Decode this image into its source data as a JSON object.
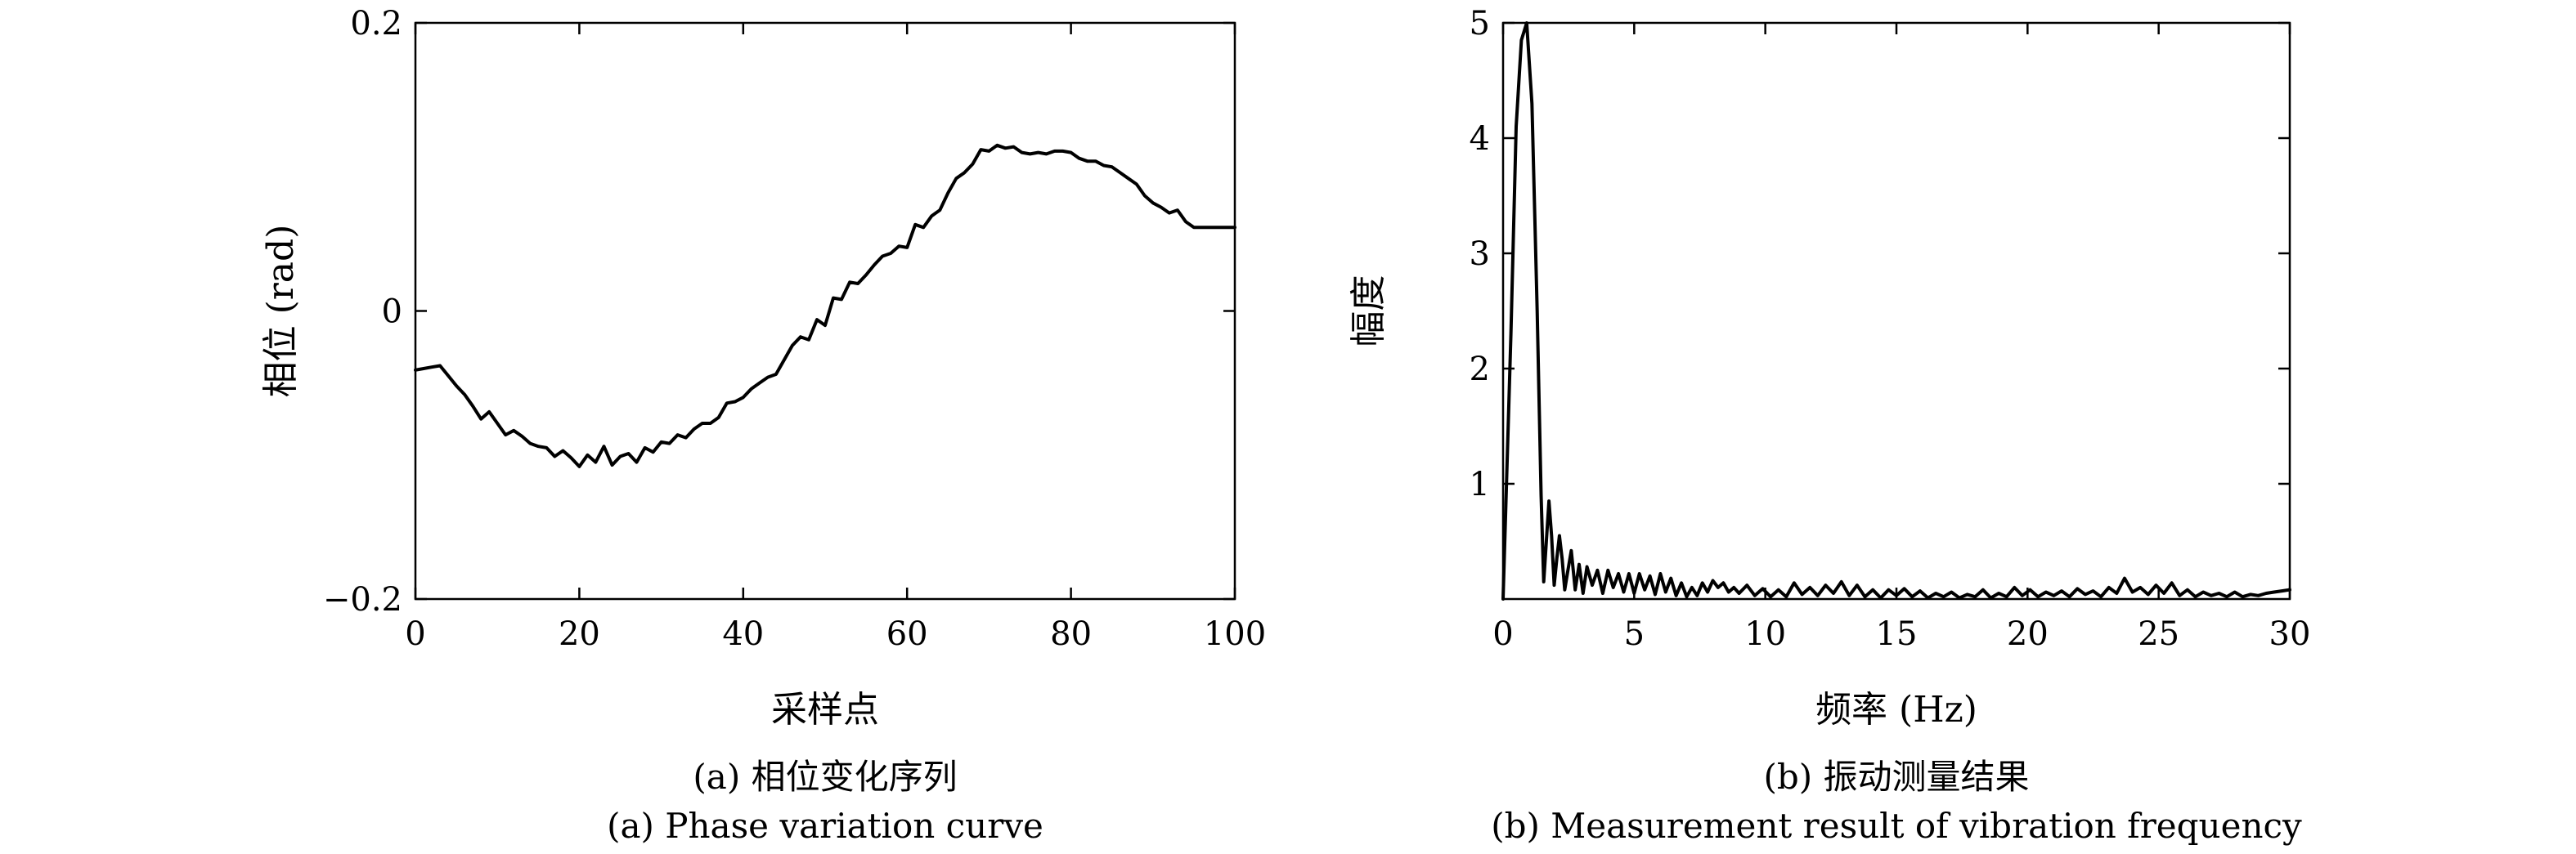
{
  "chart_data": [
    {
      "type": "line",
      "xlabel": "采样点",
      "ylabel": "相位 (rad)",
      "xlim": [
        0,
        100
      ],
      "ylim": [
        -0.2,
        0.2
      ],
      "x_ticks": [
        0,
        20,
        40,
        60,
        80,
        100
      ],
      "x_tick_labels": [
        "0",
        "20",
        "40",
        "60",
        "80",
        "100"
      ],
      "y_ticks": [
        -0.2,
        0,
        0.2
      ],
      "y_tick_labels": [
        "−0.2",
        "0",
        "0.2"
      ],
      "caption": "(a) 相位变化序列",
      "caption_en": "(a) Phase variation curve",
      "grid": false,
      "series": [
        {
          "x": [
            0,
            1,
            2,
            3,
            4,
            5,
            6,
            7,
            8,
            9,
            10,
            11,
            12,
            13,
            14,
            15,
            16,
            17,
            18,
            19,
            20,
            21,
            22,
            23,
            24,
            25,
            26,
            27,
            28,
            29,
            30,
            31,
            32,
            33,
            34,
            35,
            36,
            37,
            38,
            39,
            40,
            41,
            42,
            43,
            44,
            45,
            46,
            47,
            48,
            49,
            50,
            51,
            52,
            53,
            54,
            55,
            56,
            57,
            58,
            59,
            60,
            61,
            62,
            63,
            64,
            65,
            66,
            67,
            68,
            69,
            70,
            71,
            72,
            73,
            74,
            75,
            76,
            77,
            78,
            79,
            80,
            81,
            82,
            83,
            84,
            85,
            86,
            87,
            88,
            89,
            90,
            91,
            92,
            93,
            94,
            95,
            96,
            97,
            98,
            99,
            100
          ],
          "y": [
            -0.041,
            -0.04,
            -0.039,
            -0.038,
            -0.045,
            -0.052,
            -0.058,
            -0.066,
            -0.075,
            -0.07,
            -0.078,
            -0.086,
            -0.083,
            -0.087,
            -0.092,
            -0.094,
            -0.095,
            -0.101,
            -0.097,
            -0.102,
            -0.108,
            -0.1,
            -0.105,
            -0.094,
            -0.107,
            -0.101,
            -0.099,
            -0.105,
            -0.095,
            -0.098,
            -0.091,
            -0.092,
            -0.086,
            -0.088,
            -0.082,
            -0.078,
            -0.078,
            -0.074,
            -0.064,
            -0.063,
            -0.06,
            -0.054,
            -0.05,
            -0.046,
            -0.044,
            -0.034,
            -0.024,
            -0.018,
            -0.02,
            -0.006,
            -0.01,
            0.009,
            0.008,
            0.02,
            0.019,
            0.025,
            0.032,
            0.038,
            0.04,
            0.045,
            0.044,
            0.06,
            0.058,
            0.066,
            0.07,
            0.082,
            0.092,
            0.096,
            0.102,
            0.112,
            0.111,
            0.115,
            0.113,
            0.114,
            0.11,
            0.109,
            0.11,
            0.109,
            0.111,
            0.111,
            0.11,
            0.106,
            0.104,
            0.104,
            0.101,
            0.1,
            0.096,
            0.092,
            0.088,
            0.08,
            0.075,
            0.072,
            0.068,
            0.07,
            0.062,
            0.058,
            0.058,
            0.058,
            0.058,
            0.058,
            0.058
          ]
        }
      ]
    },
    {
      "type": "line",
      "xlabel": "频率 (Hz)",
      "ylabel": "幅度",
      "xlim": [
        0,
        30
      ],
      "ylim": [
        0,
        5
      ],
      "x_ticks": [
        0,
        5,
        10,
        15,
        20,
        25,
        30
      ],
      "x_tick_labels": [
        "0",
        "5",
        "10",
        "15",
        "20",
        "25",
        "30"
      ],
      "y_ticks": [
        1,
        2,
        3,
        4,
        5
      ],
      "y_tick_labels": [
        "1",
        "2",
        "3",
        "4",
        "5"
      ],
      "caption": "(b) 振动测量结果",
      "caption_en": "(b) Measurement result of vibration frequency",
      "grid": false,
      "series": [
        {
          "x": [
            0.0,
            0.3,
            0.5,
            0.7,
            0.9,
            1.1,
            1.3,
            1.45,
            1.55,
            1.65,
            1.75,
            1.85,
            1.95,
            2.05,
            2.15,
            2.25,
            2.35,
            2.45,
            2.6,
            2.75,
            2.9,
            3.05,
            3.2,
            3.4,
            3.6,
            3.8,
            4.0,
            4.2,
            4.4,
            4.6,
            4.8,
            5.0,
            5.2,
            5.4,
            5.6,
            5.8,
            6.0,
            6.2,
            6.4,
            6.6,
            6.8,
            7.0,
            7.2,
            7.4,
            7.6,
            7.8,
            8.0,
            8.2,
            8.4,
            8.6,
            8.8,
            9.0,
            9.3,
            9.6,
            9.9,
            10.2,
            10.5,
            10.8,
            11.1,
            11.4,
            11.7,
            12.0,
            12.3,
            12.6,
            12.9,
            13.2,
            13.5,
            13.8,
            14.1,
            14.4,
            14.7,
            15.0,
            15.3,
            15.6,
            15.9,
            16.2,
            16.5,
            16.8,
            17.1,
            17.4,
            17.7,
            18.0,
            18.3,
            18.6,
            18.9,
            19.2,
            19.5,
            19.8,
            20.1,
            20.4,
            20.7,
            21.0,
            21.3,
            21.6,
            21.9,
            22.2,
            22.5,
            22.8,
            23.1,
            23.4,
            23.7,
            24.0,
            24.3,
            24.6,
            24.9,
            25.2,
            25.5,
            25.8,
            26.1,
            26.4,
            26.7,
            27.0,
            27.3,
            27.6,
            27.9,
            28.2,
            28.5,
            28.8,
            29.1,
            29.4,
            29.7,
            30.0
          ],
          "y": [
            0.0,
            2.3,
            4.1,
            4.85,
            5.0,
            4.3,
            2.5,
            0.9,
            0.15,
            0.5,
            0.85,
            0.55,
            0.12,
            0.35,
            0.55,
            0.35,
            0.08,
            0.22,
            0.42,
            0.08,
            0.3,
            0.05,
            0.28,
            0.12,
            0.25,
            0.05,
            0.25,
            0.1,
            0.22,
            0.06,
            0.22,
            0.05,
            0.22,
            0.08,
            0.2,
            0.04,
            0.22,
            0.06,
            0.18,
            0.03,
            0.14,
            0.02,
            0.1,
            0.03,
            0.14,
            0.06,
            0.16,
            0.1,
            0.14,
            0.06,
            0.1,
            0.05,
            0.12,
            0.03,
            0.09,
            0.02,
            0.08,
            0.02,
            0.14,
            0.04,
            0.1,
            0.03,
            0.12,
            0.05,
            0.15,
            0.03,
            0.12,
            0.02,
            0.08,
            0.01,
            0.08,
            0.03,
            0.09,
            0.02,
            0.07,
            0.01,
            0.05,
            0.02,
            0.06,
            0.01,
            0.04,
            0.02,
            0.08,
            0.01,
            0.05,
            0.02,
            0.1,
            0.03,
            0.08,
            0.02,
            0.06,
            0.03,
            0.07,
            0.02,
            0.09,
            0.04,
            0.07,
            0.02,
            0.1,
            0.05,
            0.18,
            0.06,
            0.1,
            0.04,
            0.12,
            0.05,
            0.14,
            0.03,
            0.08,
            0.02,
            0.06,
            0.03,
            0.05,
            0.02,
            0.06,
            0.02,
            0.04,
            0.03,
            0.05,
            0.06,
            0.07,
            0.08
          ]
        }
      ]
    }
  ]
}
